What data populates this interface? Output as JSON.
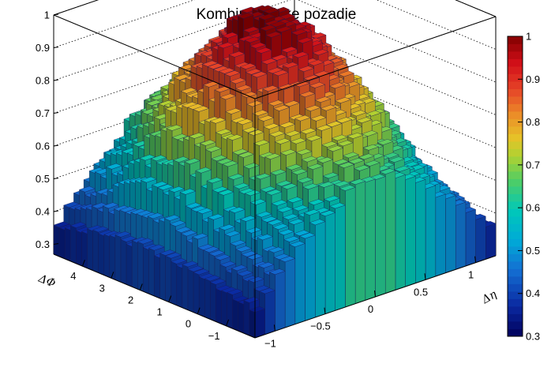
{
  "chart_data": {
    "type": "lego3d",
    "title": "Kombinatoricke pozadie",
    "xlabel": "Δη",
    "ylabel": "ΔΦ",
    "zlabel": "",
    "xlim": [
      -1.2,
      1.2
    ],
    "ylim": [
      -2,
      5
    ],
    "zlim": [
      0.27,
      1.0
    ],
    "x_ticks": [
      -1,
      -0.5,
      0,
      0.5,
      1
    ],
    "y_ticks": [
      -1,
      0,
      1,
      2,
      3,
      4
    ],
    "z_ticks": [
      0.3,
      0.4,
      0.5,
      0.6,
      0.7,
      0.8,
      0.9,
      1
    ],
    "palette_ticks": [
      0.3,
      0.4,
      0.5,
      0.6,
      0.7,
      0.8,
      0.9,
      1
    ],
    "palette_range": [
      0.3,
      1.0
    ],
    "x_bins": 24,
    "y_bins": 36,
    "peak_value": 1.0,
    "edge_value": 0.32,
    "x_tick_labels": [
      "−1",
      "−0.5",
      "0",
      "0.5",
      "1"
    ],
    "y_tick_labels": [
      "−1",
      "0",
      "1",
      "2",
      "3",
      "4"
    ],
    "z_tick_labels": [
      "0.3",
      "0.4",
      "0.5",
      "0.6",
      "0.7",
      "0.8",
      "0.9",
      "1"
    ],
    "palette_tick_labels": [
      "0.3",
      "0.4",
      "0.5",
      "0.6",
      "0.7",
      "0.8",
      "0.9",
      "1"
    ],
    "grid": true,
    "legend": "palette-right"
  }
}
